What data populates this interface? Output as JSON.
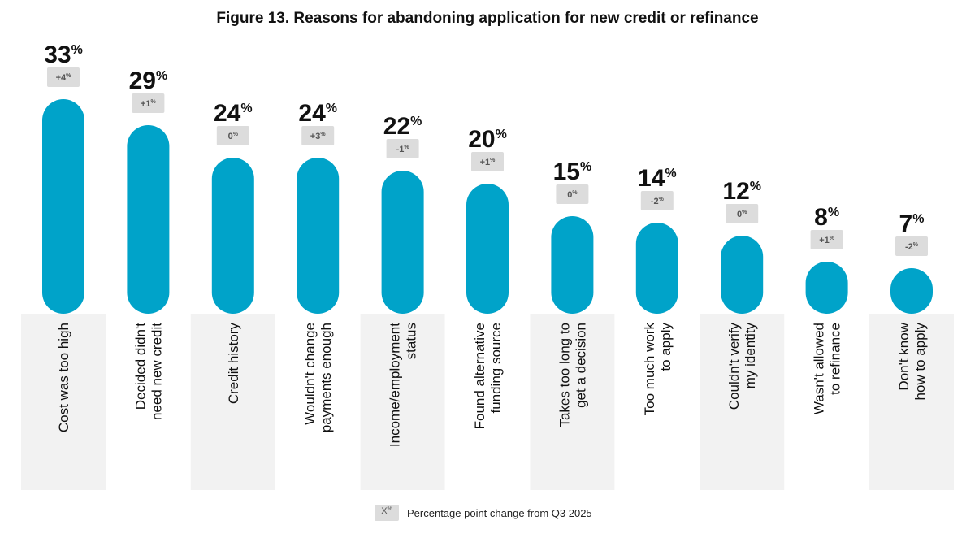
{
  "title": "Figure 13. Reasons for abandoning application for new credit or refinance",
  "legend": {
    "swatch_label": "X",
    "swatch_sup": "%",
    "label": "Percentage point change from Q3 2025"
  },
  "colors": {
    "bar": "#00a3c9",
    "badge": "#dcdcdc",
    "badge_text": "#555555",
    "label_bg": "#f2f2f2"
  },
  "chart_data": {
    "type": "bar",
    "title": "Figure 13. Reasons for abandoning application for new credit or refinance",
    "unit": "%",
    "categories": [
      [
        "Cost was too high"
      ],
      [
        "Decided didn't",
        "need new credit"
      ],
      [
        "Credit history"
      ],
      [
        "Wouldn't change",
        "payments enough"
      ],
      [
        "Income/employment",
        "status"
      ],
      [
        "Found alternative",
        "funding source"
      ],
      [
        "Takes too long to",
        "get a decision"
      ],
      [
        "Too much work",
        "to apply"
      ],
      [
        "Couldn't verify",
        "my identity"
      ],
      [
        "Wasn't allowed",
        "to refinance"
      ],
      [
        "Don't know",
        "how to apply"
      ]
    ],
    "values": [
      33,
      29,
      24,
      24,
      22,
      20,
      15,
      14,
      12,
      8,
      7
    ],
    "changes": [
      "+4",
      "+1",
      "0",
      "+3",
      "-1",
      "+1",
      "0",
      "-2",
      "0",
      "+1",
      "-2"
    ],
    "ylim": [
      0,
      33
    ],
    "grid": false
  }
}
